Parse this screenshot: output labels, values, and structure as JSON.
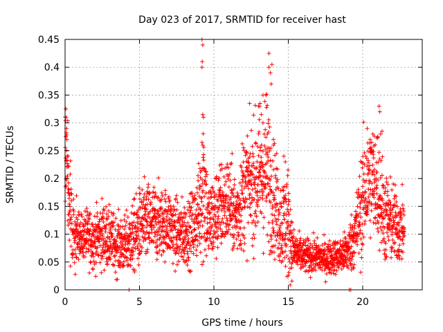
{
  "chart_data": {
    "type": "scatter",
    "title": "Day 023 of 2017, SRMTID for receiver hast",
    "xlabel": "GPS time / hours",
    "ylabel": "SRMTID / TECUs",
    "xlim": [
      0,
      24
    ],
    "ylim": [
      0,
      0.45
    ],
    "xticks": [
      0,
      5,
      10,
      15,
      20
    ],
    "xtick_labels": [
      "0",
      "5",
      "10",
      "15",
      "20"
    ],
    "yticks": [
      0,
      0.05,
      0.1,
      0.15,
      0.2,
      0.25,
      0.3,
      0.35,
      0.4,
      0.45
    ],
    "ytick_labels": [
      "0",
      "0.05",
      "0.1",
      "0.15",
      "0.2",
      "0.25",
      "0.3",
      "0.35",
      "0.4",
      "0.45"
    ],
    "grid": true,
    "marker": "plus",
    "color": "#ff0000",
    "series": [
      {
        "name": "SRMTID",
        "profile": [
          [
            0.0,
            0.26,
            0.06
          ],
          [
            0.15,
            0.21,
            0.05
          ],
          [
            0.3,
            0.15,
            0.04
          ],
          [
            0.5,
            0.1,
            0.03
          ],
          [
            1.0,
            0.09,
            0.025
          ],
          [
            1.5,
            0.095,
            0.025
          ],
          [
            2.0,
            0.09,
            0.025
          ],
          [
            2.5,
            0.1,
            0.03
          ],
          [
            3.0,
            0.09,
            0.025
          ],
          [
            3.5,
            0.08,
            0.025
          ],
          [
            4.0,
            0.08,
            0.025
          ],
          [
            4.5,
            0.09,
            0.03
          ],
          [
            5.0,
            0.11,
            0.035
          ],
          [
            5.5,
            0.12,
            0.035
          ],
          [
            6.0,
            0.12,
            0.035
          ],
          [
            6.5,
            0.12,
            0.03
          ],
          [
            7.0,
            0.12,
            0.03
          ],
          [
            7.5,
            0.1,
            0.03
          ],
          [
            8.0,
            0.1,
            0.03
          ],
          [
            8.5,
            0.11,
            0.03
          ],
          [
            9.0,
            0.14,
            0.04
          ],
          [
            9.3,
            0.2,
            0.08
          ],
          [
            9.6,
            0.12,
            0.035
          ],
          [
            10.0,
            0.13,
            0.04
          ],
          [
            10.5,
            0.15,
            0.04
          ],
          [
            11.0,
            0.16,
            0.04
          ],
          [
            11.5,
            0.13,
            0.035
          ],
          [
            12.0,
            0.18,
            0.05
          ],
          [
            12.5,
            0.19,
            0.05
          ],
          [
            13.0,
            0.2,
            0.06
          ],
          [
            13.5,
            0.22,
            0.07
          ],
          [
            14.0,
            0.17,
            0.05
          ],
          [
            14.5,
            0.12,
            0.04
          ],
          [
            15.0,
            0.12,
            0.05
          ],
          [
            15.3,
            0.07,
            0.02
          ],
          [
            16.0,
            0.06,
            0.015
          ],
          [
            16.5,
            0.06,
            0.015
          ],
          [
            17.0,
            0.06,
            0.015
          ],
          [
            17.5,
            0.055,
            0.015
          ],
          [
            18.0,
            0.06,
            0.015
          ],
          [
            18.5,
            0.06,
            0.015
          ],
          [
            19.0,
            0.07,
            0.02
          ],
          [
            19.5,
            0.1,
            0.03
          ],
          [
            20.0,
            0.16,
            0.05
          ],
          [
            20.5,
            0.2,
            0.05
          ],
          [
            21.0,
            0.19,
            0.05
          ],
          [
            21.5,
            0.13,
            0.04
          ],
          [
            22.0,
            0.12,
            0.035
          ],
          [
            22.5,
            0.11,
            0.03
          ],
          [
            22.8,
            0.11,
            0.03
          ]
        ],
        "highlights": [
          [
            0.05,
            0.325
          ],
          [
            0.07,
            0.31
          ],
          [
            0.1,
            0.29
          ],
          [
            0.12,
            0.27
          ],
          [
            0.2,
            0.24
          ],
          [
            9.2,
            0.45
          ],
          [
            9.25,
            0.44
          ],
          [
            9.22,
            0.41
          ],
          [
            9.2,
            0.4
          ],
          [
            9.25,
            0.315
          ],
          [
            9.3,
            0.31
          ],
          [
            9.2,
            0.265
          ],
          [
            9.25,
            0.26
          ],
          [
            12.0,
            0.16
          ],
          [
            12.4,
            0.17
          ],
          [
            13.0,
            0.33
          ],
          [
            13.1,
            0.335
          ],
          [
            13.3,
            0.35
          ],
          [
            13.5,
            0.35
          ],
          [
            13.3,
            0.3
          ],
          [
            13.7,
            0.425
          ],
          [
            13.8,
            0.39
          ],
          [
            13.9,
            0.405
          ],
          [
            13.7,
            0.4
          ],
          [
            13.85,
            0.37
          ],
          [
            13.6,
            0.28
          ],
          [
            14.0,
            0.26
          ],
          [
            14.7,
            0.24
          ],
          [
            14.8,
            0.23
          ],
          [
            14.8,
            0.17
          ],
          [
            20.2,
            0.24
          ],
          [
            20.5,
            0.27
          ],
          [
            20.6,
            0.265
          ],
          [
            21.1,
            0.33
          ],
          [
            21.15,
            0.32
          ],
          [
            21.2,
            0.28
          ],
          [
            21.3,
            0.285
          ],
          [
            21.0,
            0.275
          ],
          [
            20.3,
            0.29
          ],
          [
            4.3,
            0.0
          ],
          [
            19.1,
            0.0
          ],
          [
            19.2,
            0.0
          ]
        ]
      }
    ]
  }
}
